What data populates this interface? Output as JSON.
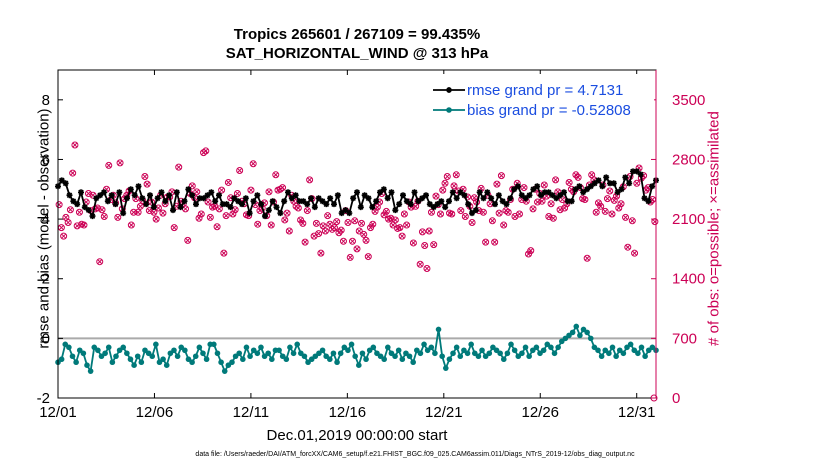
{
  "chart_data": {
    "type": "line",
    "title": "Tropics 265601 / 267109 = 99.435%",
    "subtitle": "SAT_HORIZONTAL_WIND @ 313 hPa",
    "xlabel": "Dec.01,2019 00:00:00 start",
    "ylabel": "rmse and bias (model - observation)",
    "ylabel_right": "# of obs: o=possible; ×=assimilated",
    "footnote": "data file: /Users/raeder/DAI/ATM_forcXX/CAM6_setup/f.e21.FHIST_BGC.f09_025.CAM6assim.011/Diags_NTrS_2019-12/obs_diag_output.nc",
    "xlim": [
      0,
      31
    ],
    "ylim": [
      -2,
      9
    ],
    "y2lim": [
      0,
      3850
    ],
    "xticks": [
      0,
      5,
      10,
      15,
      20,
      25,
      30
    ],
    "xtick_labels": [
      "12/01",
      "12/06",
      "12/11",
      "12/16",
      "12/21",
      "12/26",
      "12/31"
    ],
    "yticks": [
      -2,
      0,
      2,
      4,
      6,
      8
    ],
    "ytick_labels": [
      "-2",
      "0",
      "2",
      "4",
      "6",
      "8"
    ],
    "y2ticks": [
      0,
      700,
      1400,
      2100,
      2800,
      3500
    ],
    "y2tick_labels": [
      "0",
      "700",
      "1400",
      "2100",
      "2800",
      "3500"
    ],
    "zero_line": 0,
    "legend_position": "top-right",
    "colors": {
      "rmse": "#000000",
      "bias": "#007a7a",
      "obs": "#cc0055",
      "zero": "#aaaaaa",
      "legend_text": "#1a4de0"
    },
    "series": [
      {
        "name": "rmse grand pr = 4.7131",
        "axis": "left",
        "values": [
          5.1,
          5.3,
          5.2,
          4.8,
          4.6,
          4.5,
          4.9,
          4.4,
          4.3,
          4.1,
          4.7,
          4.8,
          4.9,
          4.6,
          4.8,
          4.5,
          4.9,
          4.2,
          4.7,
          5.0,
          4.8,
          5.1,
          4.7,
          4.5,
          4.8,
          4.4,
          4.7,
          4.9,
          4.6,
          4.8,
          4.3,
          4.9,
          4.4,
          4.6,
          5.0,
          4.8,
          4.5,
          4.7,
          4.7,
          4.8,
          4.9,
          4.6,
          4.8,
          4.5,
          4.5,
          4.4,
          4.7,
          4.6,
          4.5,
          4.7,
          4.2,
          4.6,
          4.8,
          4.5,
          4.1,
          4.3,
          4.6,
          4.4,
          4.2,
          4.6,
          4.9,
          4.7,
          4.8,
          4.6,
          4.6,
          4.5,
          4.7,
          4.4,
          4.7,
          4.6,
          4.5,
          4.7,
          4.5,
          4.8,
          4.2,
          4.3,
          4.2,
          4.7,
          4.9,
          4.4,
          4.8,
          4.7,
          4.4,
          4.6,
          4.9,
          5.0,
          4.7,
          4.9,
          4.3,
          4.5,
          4.8,
          4.6,
          4.5,
          4.9,
          4.6,
          4.7,
          4.8,
          4.5,
          4.4,
          4.5,
          4.6,
          4.4,
          4.6,
          4.9,
          4.7,
          4.9,
          4.8,
          4.5,
          4.2,
          4.3,
          4.9,
          4.7,
          4.9,
          4.7,
          4.5,
          4.8,
          4.6,
          4.5,
          4.7,
          5.0,
          5.1,
          4.8,
          4.7,
          4.8,
          5.0,
          5.1,
          4.8,
          4.9,
          4.9,
          4.8,
          4.7,
          4.8,
          4.9,
          4.6,
          4.6,
          5.0,
          5.1,
          4.9,
          5.0,
          5.1,
          5.2,
          5.3,
          5.1,
          5.4,
          5.2,
          5.2,
          4.9,
          5.0,
          5.4,
          5.2,
          5.6,
          5.6,
          5.5,
          4.7,
          4.6,
          5.1,
          5.3
        ]
      },
      {
        "name": "bias grand pr = -0.52808",
        "axis": "left",
        "values": [
          -0.8,
          -0.7,
          -0.2,
          -0.3,
          -0.6,
          -0.8,
          -0.4,
          -0.5,
          -0.9,
          -1.1,
          -0.3,
          -0.4,
          -0.6,
          -0.5,
          -0.3,
          -0.8,
          -0.6,
          -0.4,
          -0.3,
          -0.5,
          -0.7,
          -0.9,
          -0.6,
          -0.8,
          -0.4,
          -0.5,
          -0.6,
          -0.2,
          -0.8,
          -0.7,
          -0.9,
          -0.5,
          -0.4,
          -0.6,
          -0.3,
          -0.4,
          -0.7,
          -0.8,
          -0.6,
          -0.3,
          -0.5,
          -0.7,
          -0.2,
          -0.2,
          -0.5,
          -0.8,
          -1.1,
          -0.9,
          -0.8,
          -0.6,
          -0.5,
          -0.7,
          -0.3,
          -0.6,
          -0.4,
          -0.5,
          -0.3,
          -0.6,
          -0.5,
          -0.7,
          -0.4,
          -0.4,
          -0.6,
          -0.7,
          -0.3,
          -0.5,
          -0.2,
          -0.5,
          -0.6,
          -0.8,
          -0.7,
          -0.6,
          -0.5,
          -0.4,
          -0.6,
          -0.7,
          -0.5,
          -0.8,
          -0.5,
          -0.3,
          -0.4,
          -0.2,
          -0.6,
          -0.9,
          -0.5,
          -0.7,
          -0.4,
          -0.3,
          -0.5,
          -0.6,
          -0.7,
          -0.3,
          -0.5,
          -0.6,
          -0.4,
          -0.7,
          -0.5,
          -0.6,
          -0.8,
          -0.4,
          -0.5,
          -0.2,
          -0.4,
          -0.3,
          -0.5,
          0.3,
          -0.6,
          -1.0,
          -0.7,
          -0.5,
          -0.3,
          -0.6,
          -0.4,
          -0.5,
          -0.2,
          -0.5,
          -0.6,
          -0.4,
          -0.6,
          -0.5,
          -0.3,
          -0.4,
          -0.5,
          -0.7,
          -0.5,
          -0.2,
          -0.4,
          -0.6,
          -0.5,
          -0.3,
          -0.6,
          -0.4,
          -0.3,
          -0.5,
          -0.4,
          -0.2,
          -0.3,
          -0.5,
          -0.3,
          -0.1,
          0.0,
          0.1,
          0.2,
          0.4,
          0.1,
          0.3,
          0.2,
          0.0,
          -0.3,
          -0.4,
          -0.6,
          -0.4,
          -0.5,
          -0.3,
          -0.6,
          -0.4,
          -0.5,
          -0.3,
          -0.2,
          -0.4,
          -0.5,
          -0.3,
          -0.6,
          -0.4,
          -0.3,
          -0.4
        ]
      },
      {
        "name": "# of obs possible",
        "axis": "right",
        "values": [
          2270,
          2000,
          1900,
          2120,
          2060,
          2210,
          2640,
          2970,
          2020,
          2180,
          2040,
          2030,
          2300,
          2400,
          2200,
          2380,
          2220,
          2230,
          1600,
          2210,
          2130,
          2450,
          2730,
          2330,
          2380,
          2290,
          2120,
          2760,
          2220,
          2340,
          2380,
          2430,
          2030,
          2180,
          2340,
          2180,
          2250,
          2320,
          2600,
          2510,
          2200,
          2300,
          2180,
          2100,
          2230,
          2380,
          2170,
          2280,
          2360,
          2360,
          2420,
          2000,
          2250,
          2710,
          2310,
          2280,
          2220,
          1850,
          2400,
          2490,
          2350,
          2420,
          2110,
          2160,
          2880,
          2900,
          2300,
          2120,
          2240,
          2250,
          2010,
          2220,
          2440,
          1700,
          2140,
          2530,
          2350,
          2160,
          2210,
          2400,
          2670,
          2310,
          2280,
          2150,
          2140,
          2440,
          2750,
          2270,
          2040,
          2200,
          2230,
          2290,
          2140,
          2420,
          2030,
          2300,
          2620,
          2440,
          2450,
          2470,
          2090,
          2170,
          1960,
          2380,
          2310,
          2250,
          2230,
          2090,
          2050,
          1830,
          2200,
          2560,
          2340,
          1900,
          2050,
          1930,
          1700,
          2020,
          1960,
          2140,
          2040,
          1980,
          2000,
          2070,
          1940,
          1970,
          1840,
          2200,
          2060,
          1650,
          1840,
          2080,
          1750,
          1960,
          2050,
          1920,
          1850,
          1660,
          2000,
          2040,
          2190,
          2240,
          2300,
          2400,
          2150,
          2190,
          2100,
          2110,
          2030,
          2090,
          1990,
          2000,
          1900,
          2160,
          2030,
          2300,
          2240,
          1820,
          2250,
          2310,
          1570,
          1950,
          1790,
          1520,
          1960,
          2180,
          1800,
          2370,
          2270,
          2160,
          2440,
          2520,
          2600,
          2170,
          2160,
          2490,
          2620,
          2430,
          2200,
          2450,
          2130,
          2360,
          2250,
          2060,
          2350,
          2300,
          2200,
          2460,
          2180,
          1830,
          2380,
          2280,
          2080,
          1830,
          2510,
          2170,
          2610,
          2030,
          2200,
          2180,
          2330,
          2450,
          2130,
          2520,
          2160,
          2330,
          2470,
          2310,
          1690,
          1730,
          2220,
          2450,
          2300,
          2400,
          2310,
          2500,
          2370,
          2130,
          2280,
          2110,
          2560,
          2420,
          2210,
          2330,
          2230,
          2280,
          2530,
          2450,
          2420,
          2620,
          2590,
          2470,
          2340,
          2330,
          1640,
          2500,
          2620,
          2560,
          2180,
          2290,
          2250,
          2500,
          2190,
          2340,
          2430,
          2160,
          2320,
          2370,
          2230,
          2280,
          2480,
          2120,
          1770,
          2600,
          2080,
          1700,
          2520,
          2700,
          2580,
          2610,
          2440,
          2470,
          2300,
          2330,
          2070
        ]
      }
    ]
  }
}
